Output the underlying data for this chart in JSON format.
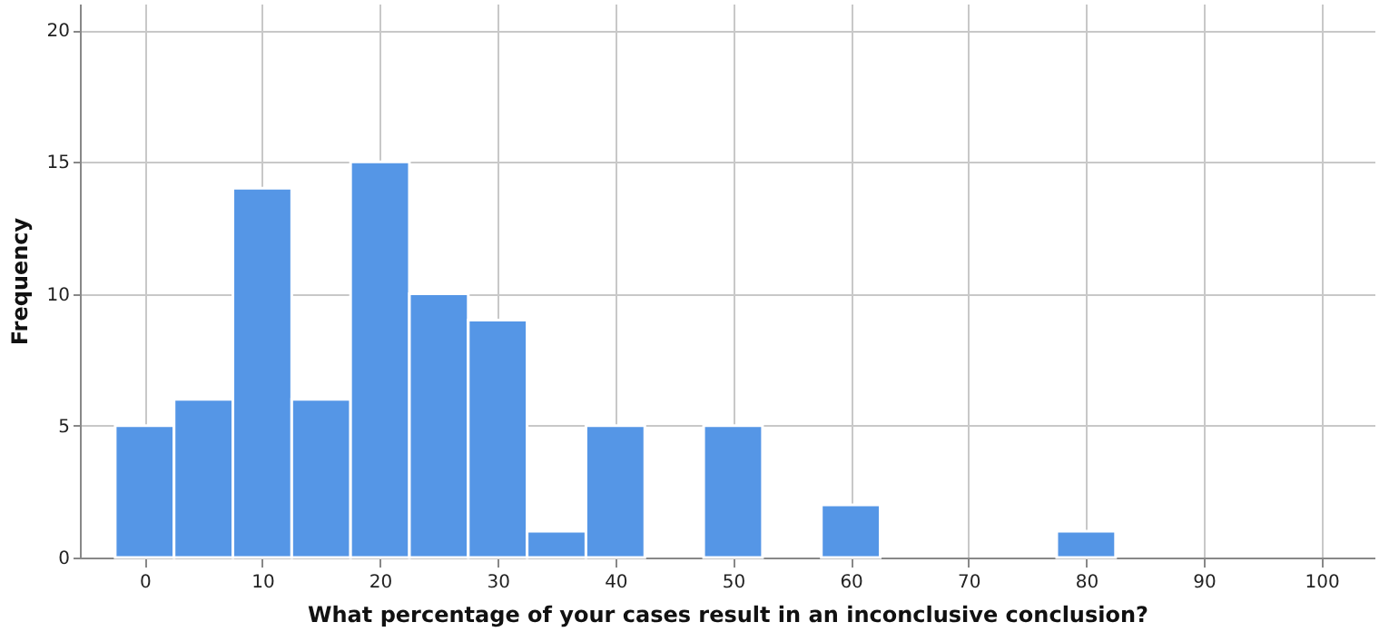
{
  "chart_data": {
    "type": "histogram",
    "xlabel": "What percentage of your cases result in an inconclusive conclusion?",
    "ylabel": "Frequency",
    "bins": [
      -2.5,
      2.5,
      7.5,
      12.5,
      17.5,
      22.5,
      27.5,
      32.5,
      37.5,
      42.5,
      47.5,
      52.5,
      57.5,
      62.5,
      67.5,
      72.5,
      77.5,
      82.5
    ],
    "values": [
      5,
      6,
      14,
      6,
      15,
      10,
      9,
      1,
      5,
      0,
      5,
      0,
      2,
      0,
      0,
      0,
      1
    ],
    "color": "#5596e6",
    "xlim": [
      -5.5,
      104.5
    ],
    "xticks": [
      0,
      10,
      20,
      30,
      40,
      50,
      60,
      70,
      80,
      90,
      100
    ],
    "ylim": [
      0,
      21
    ],
    "yticks": [
      0,
      5,
      10,
      15,
      20
    ],
    "grid": true
  }
}
